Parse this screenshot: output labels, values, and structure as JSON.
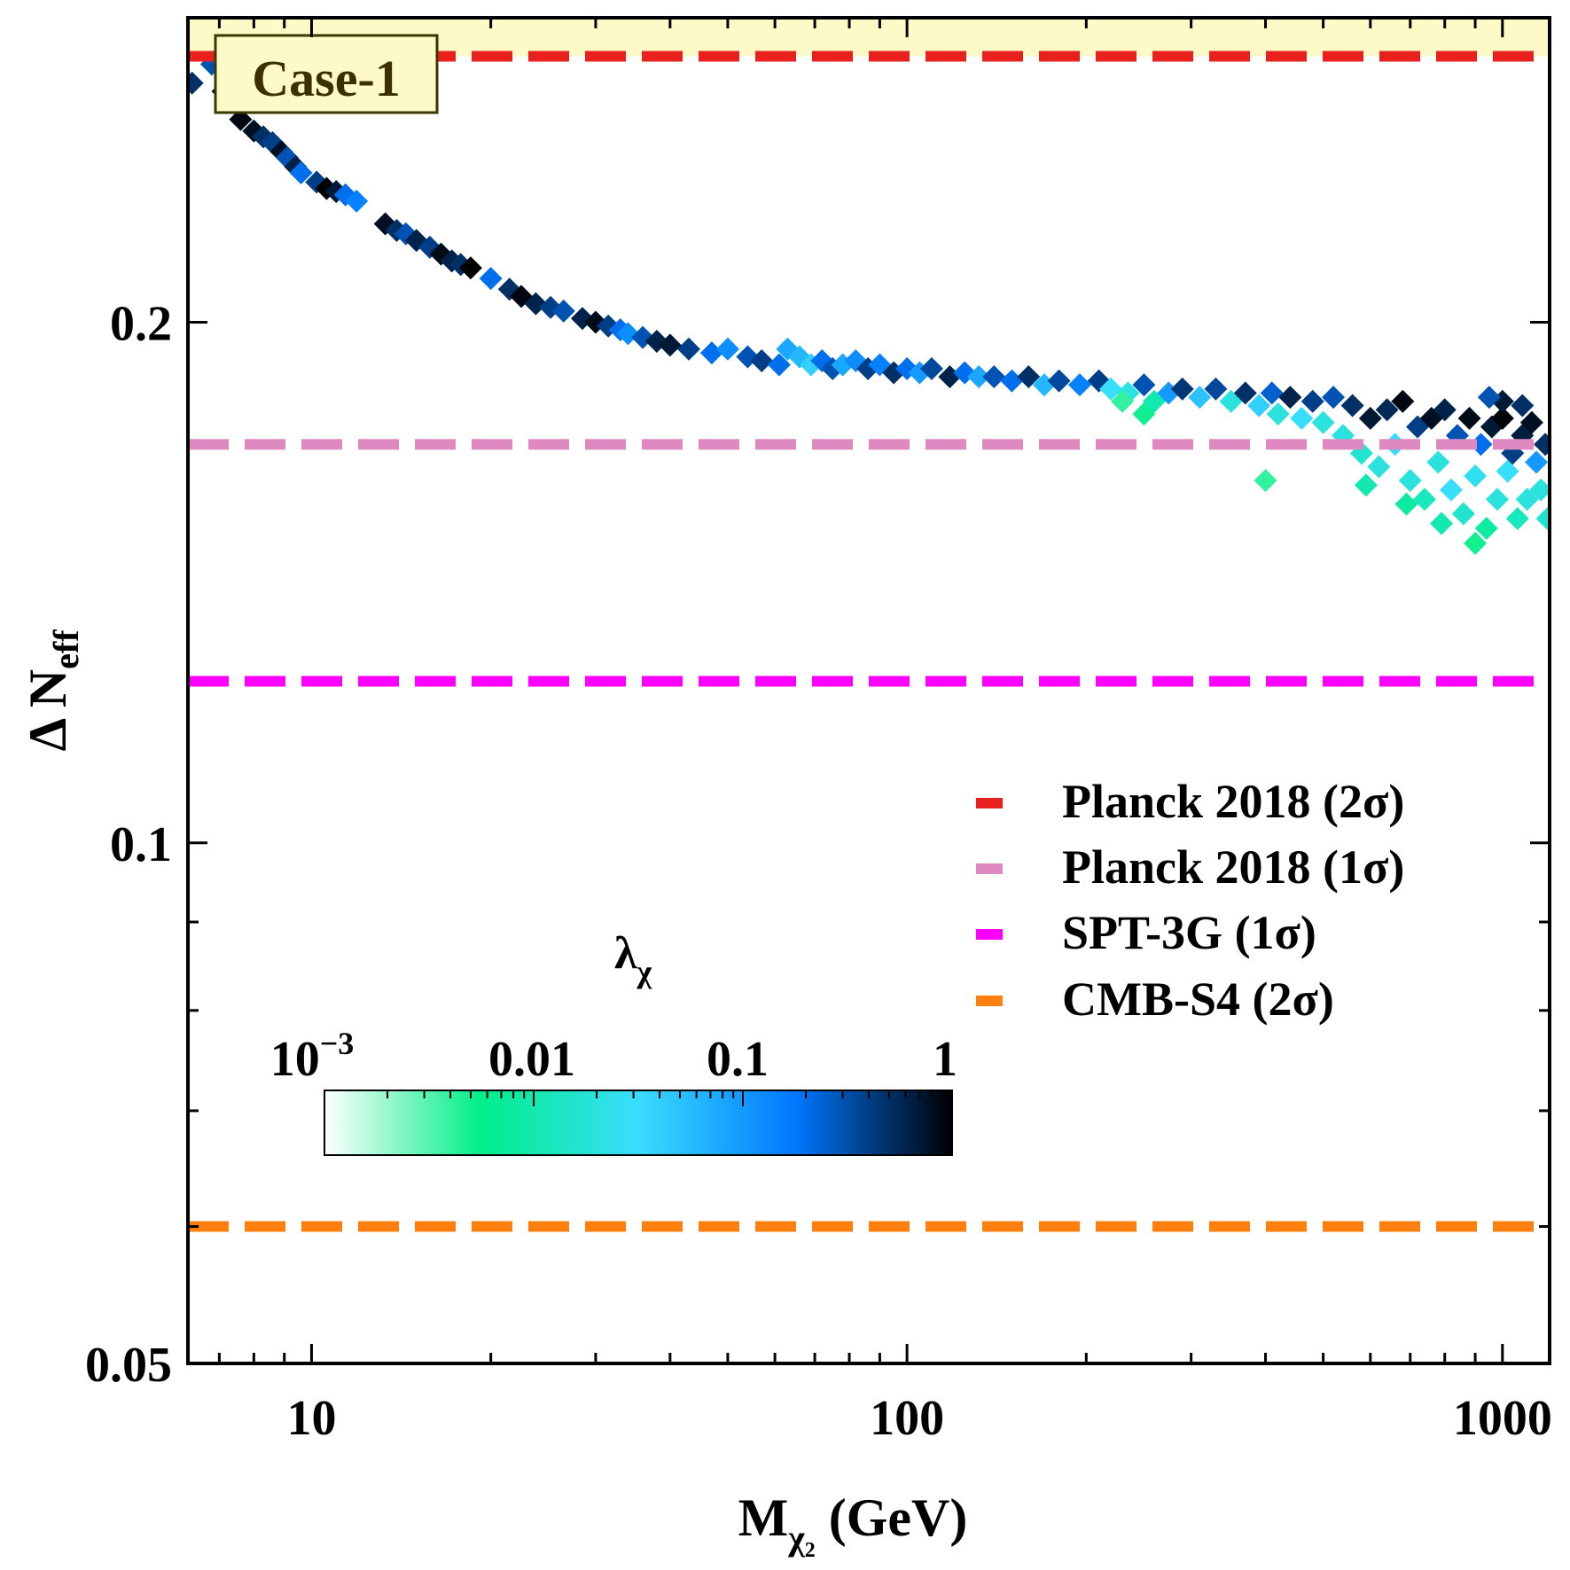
{
  "chart_data": {
    "type": "scatter",
    "title": "",
    "case_label": "Case-1",
    "xlabel": {
      "main": "M",
      "sub": "χ",
      "subsub": "2",
      "unit": " (GeV)"
    },
    "ylabel": {
      "main": "Δ N",
      "sub": "eff"
    },
    "xscale": "log",
    "yscale": "log",
    "xlim": [
      6.2,
      1200
    ],
    "ylim": [
      0.05,
      0.3
    ],
    "xticks": [
      {
        "value": 10,
        "label": "10"
      },
      {
        "value": 100,
        "label": "100"
      },
      {
        "value": 1000,
        "label": "1000"
      }
    ],
    "yticks": [
      {
        "value": 0.05,
        "label": "0.05"
      },
      {
        "value": 0.1,
        "label": "0.1"
      },
      {
        "value": 0.2,
        "label": "0.2"
      }
    ],
    "excluded_region": {
      "from": 0.285,
      "to": 0.3,
      "color": "#FDFAC8"
    },
    "hlines": [
      {
        "name": "Planck 2018 (2σ)",
        "y": 0.285,
        "color": "#E8201E"
      },
      {
        "name": "Planck 2018 (1σ)",
        "y": 0.17,
        "color": "#DE8AC0"
      },
      {
        "name": "SPT-3G (1σ)",
        "y": 0.124,
        "color": "#FF00FF"
      },
      {
        "name": "CMB-S4 (2σ)",
        "y": 0.06,
        "color": "#FF7F0E"
      }
    ],
    "legend_position": "center-right",
    "colorbar": {
      "label_main": "λ",
      "label_sub": "χ",
      "scale": "log",
      "range": [
        0.001,
        1
      ],
      "ticks": [
        {
          "value": 0.001,
          "base": "10",
          "exp": "−3"
        },
        {
          "value": 0.01,
          "base": "0.01",
          "exp": ""
        },
        {
          "value": 0.1,
          "base": "0.1",
          "exp": ""
        },
        {
          "value": 1,
          "base": "1",
          "exp": ""
        }
      ],
      "colors": [
        "#FFFFFF",
        "#00EE88",
        "#3ADDFF",
        "#0077FF",
        "#000000"
      ]
    },
    "series": [
      {
        "marker": "diamond",
        "points": [
          [
            6.3,
            0.275,
            0.5
          ],
          [
            6.8,
            0.282,
            0.3
          ],
          [
            7.1,
            0.272,
            0.9
          ],
          [
            7.4,
            0.27,
            0.95
          ],
          [
            7.6,
            0.262,
            0.9
          ],
          [
            8.0,
            0.258,
            0.8
          ],
          [
            8.3,
            0.256,
            0.5
          ],
          [
            8.6,
            0.254,
            0.4
          ],
          [
            8.9,
            0.251,
            0.8
          ],
          [
            9.1,
            0.249,
            0.3
          ],
          [
            9.4,
            0.246,
            0.6
          ],
          [
            9.6,
            0.244,
            0.2
          ],
          [
            10.2,
            0.241,
            0.4
          ],
          [
            10.6,
            0.239,
            1.0
          ],
          [
            11.0,
            0.238,
            0.7
          ],
          [
            11.4,
            0.237,
            0.2
          ],
          [
            11.9,
            0.235,
            0.15
          ],
          [
            13.3,
            0.228,
            0.8
          ],
          [
            13.9,
            0.226,
            0.5
          ],
          [
            14.4,
            0.225,
            0.3
          ],
          [
            15.0,
            0.223,
            0.6
          ],
          [
            15.8,
            0.221,
            0.4
          ],
          [
            16.5,
            0.219,
            0.85
          ],
          [
            17.2,
            0.217,
            0.6
          ],
          [
            17.8,
            0.216,
            0.5
          ],
          [
            18.5,
            0.215,
            1.0
          ],
          [
            20.0,
            0.212,
            0.2
          ],
          [
            21.5,
            0.209,
            0.5
          ],
          [
            22.5,
            0.207,
            0.9
          ],
          [
            23.8,
            0.205,
            0.6
          ],
          [
            25.2,
            0.204,
            0.4
          ],
          [
            26.5,
            0.203,
            0.3
          ],
          [
            28.5,
            0.201,
            0.6
          ],
          [
            30.0,
            0.2,
            0.85
          ],
          [
            31.5,
            0.199,
            0.4
          ],
          [
            33.0,
            0.198,
            0.2
          ],
          [
            34.0,
            0.197,
            0.12
          ],
          [
            36.0,
            0.196,
            0.3
          ],
          [
            38.0,
            0.195,
            0.6
          ],
          [
            40.0,
            0.194,
            0.7
          ],
          [
            43.0,
            0.193,
            0.4
          ],
          [
            47.0,
            0.192,
            0.2
          ],
          [
            50.0,
            0.193,
            0.12
          ],
          [
            54.0,
            0.191,
            0.3
          ],
          [
            57.0,
            0.19,
            0.4
          ],
          [
            61.0,
            0.189,
            0.2
          ],
          [
            63.0,
            0.193,
            0.08
          ],
          [
            66.0,
            0.191,
            0.06
          ],
          [
            69.0,
            0.189,
            0.04
          ],
          [
            72.0,
            0.19,
            0.2
          ],
          [
            75.0,
            0.188,
            0.3
          ],
          [
            78.0,
            0.189,
            0.08
          ],
          [
            82.0,
            0.19,
            0.12
          ],
          [
            86.0,
            0.188,
            0.4
          ],
          [
            90.0,
            0.189,
            0.15
          ],
          [
            95.0,
            0.187,
            0.5
          ],
          [
            100.0,
            0.188,
            0.2
          ],
          [
            105.0,
            0.187,
            0.1
          ],
          [
            110.0,
            0.188,
            0.35
          ],
          [
            118.0,
            0.186,
            0.6
          ],
          [
            125.0,
            0.187,
            0.2
          ],
          [
            132.0,
            0.186,
            0.08
          ],
          [
            140.0,
            0.186,
            0.3
          ],
          [
            150.0,
            0.185,
            0.2
          ],
          [
            160.0,
            0.186,
            0.5
          ],
          [
            170.0,
            0.184,
            0.06
          ],
          [
            180.0,
            0.185,
            0.35
          ],
          [
            195.0,
            0.184,
            0.15
          ],
          [
            210.0,
            0.185,
            0.4
          ],
          [
            220.0,
            0.183,
            0.03
          ],
          [
            235.0,
            0.182,
            0.02
          ],
          [
            250.0,
            0.184,
            0.3
          ],
          [
            260.0,
            0.18,
            0.01
          ],
          [
            275.0,
            0.182,
            0.1
          ],
          [
            290.0,
            0.183,
            0.45
          ],
          [
            310.0,
            0.181,
            0.05
          ],
          [
            330.0,
            0.183,
            0.35
          ],
          [
            350.0,
            0.18,
            0.02
          ],
          [
            370.0,
            0.182,
            0.5
          ],
          [
            390.0,
            0.179,
            0.04
          ],
          [
            410.0,
            0.182,
            0.25
          ],
          [
            420.0,
            0.177,
            0.02
          ],
          [
            440.0,
            0.181,
            0.6
          ],
          [
            460.0,
            0.176,
            0.03
          ],
          [
            480.0,
            0.18,
            0.4
          ],
          [
            500.0,
            0.175,
            0.02
          ],
          [
            520.0,
            0.181,
            0.3
          ],
          [
            540.0,
            0.172,
            0.02
          ],
          [
            560.0,
            0.179,
            0.5
          ],
          [
            580.0,
            0.168,
            0.015
          ],
          [
            600.0,
            0.176,
            0.7
          ],
          [
            620.0,
            0.165,
            0.02
          ],
          [
            640.0,
            0.178,
            0.55
          ],
          [
            660.0,
            0.17,
            0.03
          ],
          [
            680.0,
            0.18,
            0.9
          ],
          [
            700.0,
            0.162,
            0.02
          ],
          [
            720.0,
            0.174,
            0.4
          ],
          [
            740.0,
            0.158,
            0.012
          ],
          [
            760.0,
            0.176,
            0.8
          ],
          [
            780.0,
            0.166,
            0.02
          ],
          [
            800.0,
            0.178,
            0.6
          ],
          [
            820.0,
            0.16,
            0.03
          ],
          [
            840.0,
            0.172,
            0.3
          ],
          [
            860.0,
            0.155,
            0.015
          ],
          [
            880.0,
            0.176,
            0.85
          ],
          [
            900.0,
            0.163,
            0.025
          ],
          [
            920.0,
            0.17,
            0.2
          ],
          [
            940.0,
            0.152,
            0.008
          ],
          [
            960.0,
            0.174,
            0.7
          ],
          [
            980.0,
            0.158,
            0.02
          ],
          [
            1000.0,
            0.176,
            0.95
          ],
          [
            1020.0,
            0.164,
            0.03
          ],
          [
            1040.0,
            0.168,
            0.4
          ],
          [
            1060.0,
            0.154,
            0.012
          ],
          [
            1080.0,
            0.172,
            0.65
          ],
          [
            1100.0,
            0.158,
            0.02
          ],
          [
            1120.0,
            0.175,
            0.8
          ],
          [
            1140.0,
            0.166,
            0.1
          ],
          [
            1160.0,
            0.16,
            0.02
          ],
          [
            1180.0,
            0.17,
            0.5
          ],
          [
            1190.0,
            0.154,
            0.015
          ],
          [
            900.0,
            0.149,
            0.005
          ],
          [
            790.0,
            0.153,
            0.01
          ],
          [
            690.0,
            0.157,
            0.008
          ],
          [
            590.0,
            0.161,
            0.01
          ],
          [
            400.0,
            0.162,
            0.004
          ],
          [
            250.0,
            0.177,
            0.005
          ],
          [
            230.0,
            0.18,
            0.004
          ],
          [
            1000.0,
            0.18,
            0.7
          ],
          [
            1080.0,
            0.179,
            0.5
          ],
          [
            950.0,
            0.181,
            0.3
          ]
        ]
      }
    ]
  }
}
